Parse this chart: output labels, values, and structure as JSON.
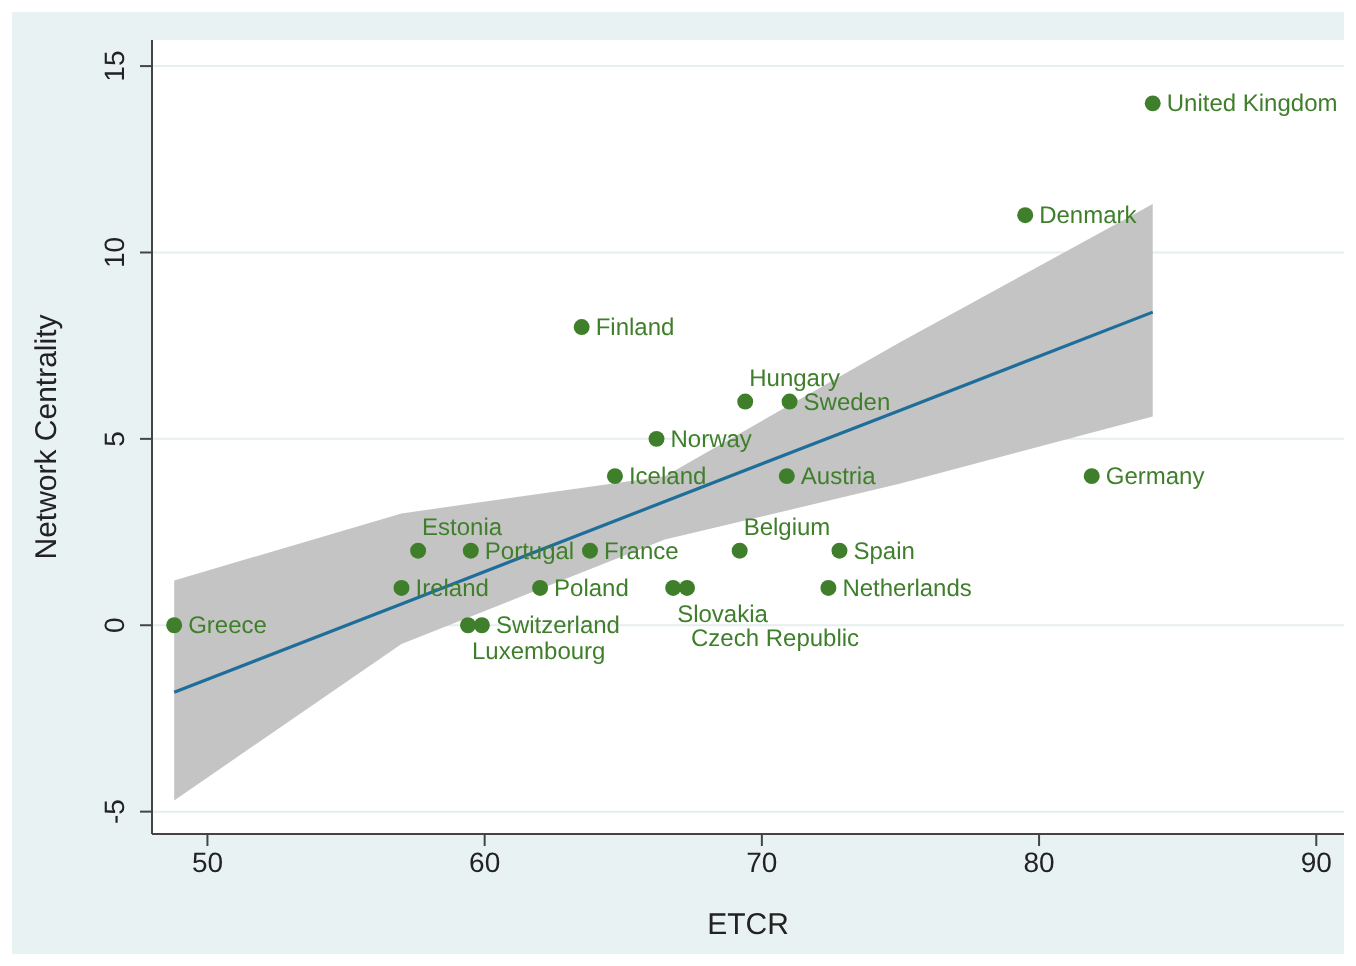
{
  "chart_data": {
    "type": "scatter",
    "xlabel": "ETCR",
    "ylabel": "Network Centrality",
    "xlim": [
      48,
      91
    ],
    "ylim": [
      -5.6,
      15.7
    ],
    "xticks": [
      50,
      60,
      70,
      80,
      90
    ],
    "yticks": [
      -5,
      0,
      5,
      10,
      15
    ],
    "grid": "y",
    "marker": "circle",
    "series": [
      {
        "type": "line",
        "color": "#1f6e9a",
        "x": [
          48.8,
          57,
          66.5,
          75,
          84.1
        ],
        "values": [
          -1.8,
          0.57,
          3.32,
          5.77,
          8.4
        ],
        "lower": [
          -4.7,
          -0.5,
          2.3,
          3.8,
          5.6
        ],
        "upper": [
          1.2,
          3.0,
          4.0,
          7.6,
          11.3
        ],
        "marker": "none"
      },
      {
        "color": "#3f7f2b",
        "x": [
          48.8,
          57.0,
          57.6,
          59.5,
          59.4,
          59.9,
          62.0,
          63.8,
          63.5,
          64.7,
          66.2,
          69.4,
          71.0,
          70.9,
          69.2,
          72.8,
          66.8,
          67.3,
          72.4,
          81.9,
          79.5,
          84.1
        ],
        "values": [
          0,
          1,
          2,
          2,
          0,
          0,
          1,
          2,
          8,
          4,
          5,
          6,
          6,
          4,
          2,
          2,
          1,
          1,
          1,
          4,
          11,
          14
        ]
      }
    ],
    "annotations": [
      {
        "text": "Greece",
        "x": 48.8,
        "y": 0
      },
      {
        "text": "Ireland",
        "x": 57.0,
        "y": 1
      },
      {
        "text": "Estonia",
        "x": 57.6,
        "y": 2
      },
      {
        "text": "Portugal",
        "x": 59.5,
        "y": 2
      },
      {
        "text": "Luxembourg",
        "x": 59.4,
        "y": 0
      },
      {
        "text": "Switzerland",
        "x": 59.9,
        "y": 0
      },
      {
        "text": "Poland",
        "x": 62.0,
        "y": 1
      },
      {
        "text": "France",
        "x": 63.8,
        "y": 2
      },
      {
        "text": "Finland",
        "x": 63.5,
        "y": 8
      },
      {
        "text": "Iceland",
        "x": 64.7,
        "y": 4
      },
      {
        "text": "Norway",
        "x": 66.2,
        "y": 5
      },
      {
        "text": "Hungary",
        "x": 69.4,
        "y": 6
      },
      {
        "text": "Sweden",
        "x": 71.0,
        "y": 6
      },
      {
        "text": "Austria",
        "x": 70.9,
        "y": 4
      },
      {
        "text": "Belgium",
        "x": 69.2,
        "y": 2
      },
      {
        "text": "Spain",
        "x": 72.8,
        "y": 2
      },
      {
        "text": "Slovakia",
        "x": 66.8,
        "y": 1
      },
      {
        "text": "Czech Republic",
        "x": 67.3,
        "y": 1
      },
      {
        "text": "Netherlands",
        "x": 72.4,
        "y": 1
      },
      {
        "text": "Germany",
        "x": 81.9,
        "y": 4
      },
      {
        "text": "Denmark",
        "x": 79.5,
        "y": 11
      },
      {
        "text": "United Kingdom",
        "x": 84.1,
        "y": 14
      }
    ]
  }
}
